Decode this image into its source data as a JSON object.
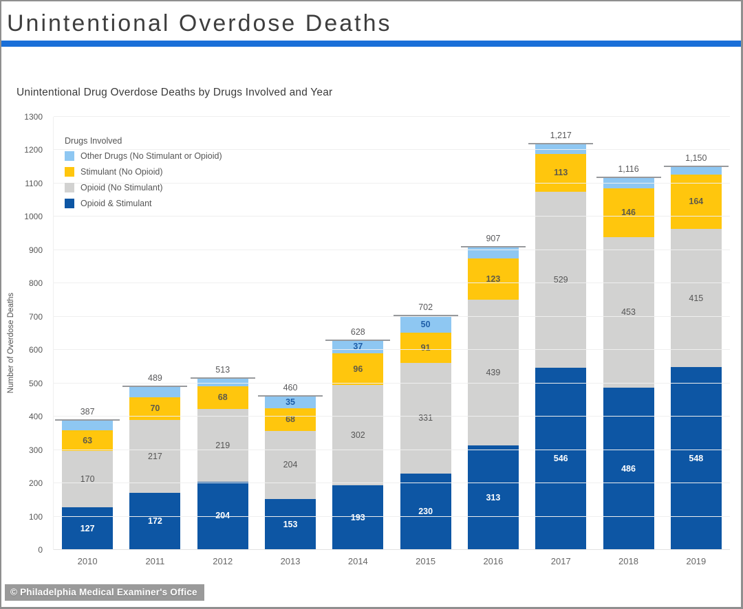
{
  "page": {
    "title": "Unintentional Overdose Deaths",
    "divider_color": "#1a6fd8",
    "footer_credit": "© Philadelphia Medical Examiner's Office"
  },
  "legend": {
    "title": "Drugs Involved",
    "items": [
      {
        "label": "Other Drugs (No Stimulant or Opioid)",
        "color": "#8ec7f2"
      },
      {
        "label": "Stimulant (No Opioid)",
        "color": "#ffc60d"
      },
      {
        "label": "Opioid (No Stimulant)",
        "color": "#d2d2d1"
      },
      {
        "label": "Opioid & Stimulant",
        "color": "#0d56a4"
      }
    ]
  },
  "chart_data": {
    "type": "bar",
    "stacked": true,
    "title": "Unintentional Drug Overdose Deaths by Drugs Involved and Year",
    "xlabel": "",
    "ylabel": "Number of Overdose Deaths",
    "ylim": [
      0,
      1300
    ],
    "ytick_step": 100,
    "grid": true,
    "legend_position": "top-left",
    "categories": [
      "2010",
      "2011",
      "2012",
      "2013",
      "2014",
      "2015",
      "2016",
      "2017",
      "2018",
      "2019"
    ],
    "series": [
      {
        "name": "Opioid & Stimulant",
        "color": "#0d56a4",
        "label_color": "#ffffff",
        "label_bold": true,
        "values": [
          127,
          172,
          204,
          153,
          193,
          230,
          313,
          546,
          486,
          548
        ],
        "labels": [
          "127",
          "172",
          "204",
          "153",
          "193",
          "230",
          "313",
          "546",
          "486",
          "548"
        ]
      },
      {
        "name": "Opioid (No Stimulant)",
        "color": "#d2d2d1",
        "label_color": "#555555",
        "label_bold": false,
        "values": [
          170,
          217,
          219,
          204,
          302,
          331,
          439,
          529,
          453,
          415
        ],
        "labels": [
          "170",
          "217",
          "219",
          "204",
          "302",
          "331",
          "439",
          "529",
          "453",
          "415"
        ]
      },
      {
        "name": "Stimulant (No Opioid)",
        "color": "#ffc60d",
        "label_color": "#5e5a4a",
        "label_bold": true,
        "values": [
          63,
          70,
          68,
          68,
          96,
          91,
          123,
          113,
          146,
          164
        ],
        "labels": [
          "63",
          "70",
          "68",
          "68",
          "96",
          "91",
          "123",
          "113",
          "146",
          "164"
        ]
      },
      {
        "name": "Other Drugs (No Stimulant or Opioid)",
        "color": "#8ec7f2",
        "label_color": "#1d5da7",
        "label_bold": true,
        "values": [
          27,
          30,
          22,
          35,
          37,
          50,
          32,
          29,
          31,
          23
        ],
        "labels": [
          null,
          null,
          null,
          "35",
          "37",
          "50",
          null,
          null,
          null,
          null
        ]
      }
    ],
    "totals_display": [
      "387",
      "489",
      "513",
      "460",
      "628",
      "702",
      "907",
      "1,217",
      "1,116",
      "1,150"
    ]
  }
}
